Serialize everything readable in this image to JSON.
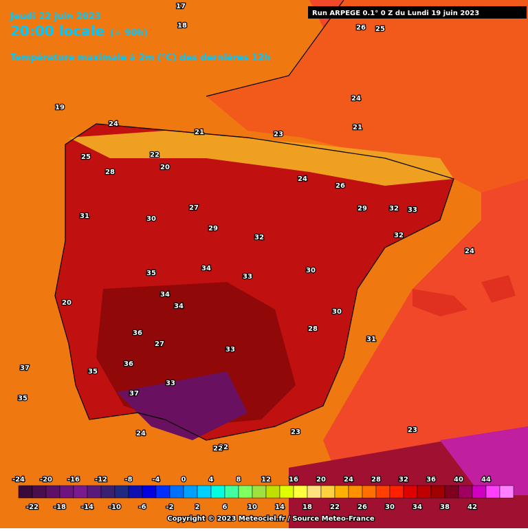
{
  "header": {
    "date": "Jeudi 22 juin 2023",
    "time": "20:00 locale",
    "lead": "(+ 90h)",
    "parameter": "Température maximale à 2m (°C) des dernières 12h",
    "run": "Run ARPEGE 0.1° 0 Z du Lundi 19 juin 2023"
  },
  "map_labels": [
    17,
    18,
    19,
    24,
    23,
    21,
    22,
    25,
    26,
    24,
    20,
    28,
    27,
    30,
    29,
    31,
    33,
    32,
    35,
    34,
    36,
    37,
    35,
    33,
    30,
    28,
    24,
    22,
    23,
    21,
    26,
    29,
    32,
    33,
    34,
    24,
    27,
    25,
    32,
    31,
    33,
    35,
    36,
    34,
    37,
    30,
    24,
    20,
    22,
    23
  ],
  "colorbar": {
    "colors": [
      "#3a0a3a",
      "#4a0d4e",
      "#5c1066",
      "#6e1480",
      "#7a1a8e",
      "#5a1a7a",
      "#3a2070",
      "#202880",
      "#1010b0",
      "#0000e0",
      "#0030ff",
      "#0070ff",
      "#00a0ff",
      "#00d0ff",
      "#00ffe0",
      "#40ffa0",
      "#80ff60",
      "#a0e040",
      "#c0e000",
      "#e0ff00",
      "#ffff40",
      "#ffe080",
      "#ffd040",
      "#ffb000",
      "#ff9000",
      "#ff7000",
      "#ff4000",
      "#ff2000",
      "#e00000",
      "#c00000",
      "#a00000",
      "#800020",
      "#a00060",
      "#d000c0",
      "#ff40ff",
      "#ff80ff"
    ],
    "top_labels": [
      -24,
      -20,
      -16,
      -12,
      -8,
      -4,
      0,
      4,
      8,
      12,
      16,
      20,
      24,
      28,
      32,
      36,
      40,
      44
    ],
    "bottom_labels": [
      -22,
      -18,
      -14,
      -10,
      -6,
      -2,
      2,
      6,
      10,
      14,
      18,
      22,
      26,
      30,
      34,
      38,
      42
    ]
  },
  "footer": {
    "copyright": "Copyright © 2023 Meteociel.fr / Source Meteo-France"
  }
}
